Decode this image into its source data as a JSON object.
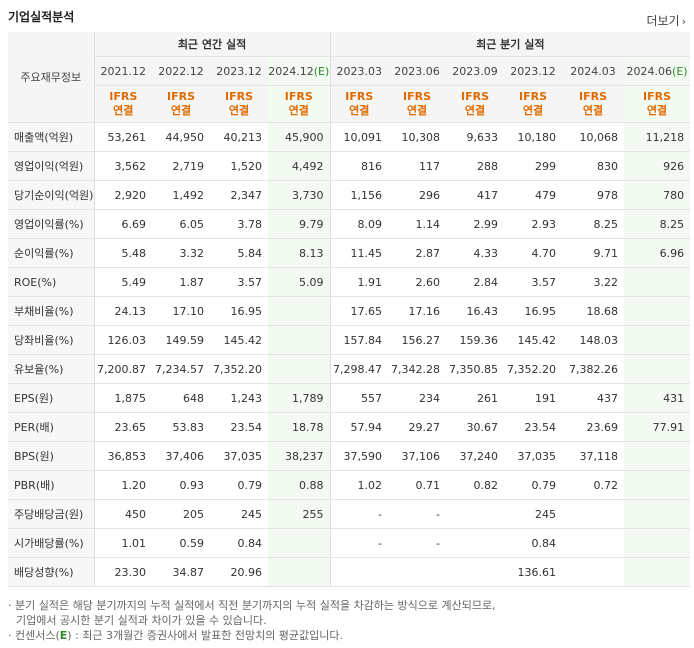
{
  "title": "기업실적분석",
  "more_label": "더보기",
  "header": {
    "label": "주요재무정보",
    "annual_group": "최근 연간 실적",
    "quarter_group": "최근 분기 실적",
    "periods": [
      "2021.12",
      "2022.12",
      "2023.12",
      "2024.12",
      "2023.03",
      "2023.06",
      "2023.09",
      "2023.12",
      "2024.03",
      "2024.06"
    ],
    "estimate_suffix": "(E)",
    "ifrs_top": "IFRS",
    "ifrs_bottom": "연결"
  },
  "rows": [
    {
      "label": "매출액(억원)",
      "values": [
        "53,261",
        "44,950",
        "40,213",
        "45,900",
        "10,091",
        "10,308",
        "9,633",
        "10,180",
        "10,068",
        "11,218"
      ]
    },
    {
      "label": "영업이익(억원)",
      "values": [
        "3,562",
        "2,719",
        "1,520",
        "4,492",
        "816",
        "117",
        "288",
        "299",
        "830",
        "926"
      ]
    },
    {
      "label": "당기순이익(억원)",
      "values": [
        "2,920",
        "1,492",
        "2,347",
        "3,730",
        "1,156",
        "296",
        "417",
        "479",
        "978",
        "780"
      ]
    },
    {
      "label": "영업이익률(%)",
      "values": [
        "6.69",
        "6.05",
        "3.78",
        "9.79",
        "8.09",
        "1.14",
        "2.99",
        "2.93",
        "8.25",
        "8.25"
      ]
    },
    {
      "label": "순이익률(%)",
      "values": [
        "5.48",
        "3.32",
        "5.84",
        "8.13",
        "11.45",
        "2.87",
        "4.33",
        "4.70",
        "9.71",
        "6.96"
      ]
    },
    {
      "label": "ROE(%)",
      "values": [
        "5.49",
        "1.87",
        "3.57",
        "5.09",
        "1.91",
        "2.60",
        "2.84",
        "3.57",
        "3.22",
        ""
      ]
    },
    {
      "label": "부채비율(%)",
      "values": [
        "24.13",
        "17.10",
        "16.95",
        "",
        "17.65",
        "17.16",
        "16.43",
        "16.95",
        "18.68",
        ""
      ]
    },
    {
      "label": "당좌비율(%)",
      "values": [
        "126.03",
        "149.59",
        "145.42",
        "",
        "157.84",
        "156.27",
        "159.36",
        "145.42",
        "148.03",
        ""
      ]
    },
    {
      "label": "유보율(%)",
      "values": [
        "7,200.87",
        "7,234.57",
        "7,352.20",
        "",
        "7,298.47",
        "7,342.28",
        "7,350.85",
        "7,352.20",
        "7,382.26",
        ""
      ]
    },
    {
      "label": "EPS(원)",
      "values": [
        "1,875",
        "648",
        "1,243",
        "1,789",
        "557",
        "234",
        "261",
        "191",
        "437",
        "431"
      ]
    },
    {
      "label": "PER(배)",
      "values": [
        "23.65",
        "53.83",
        "23.54",
        "18.78",
        "57.94",
        "29.27",
        "30.67",
        "23.54",
        "23.69",
        "77.91"
      ]
    },
    {
      "label": "BPS(원)",
      "values": [
        "36,853",
        "37,406",
        "37,035",
        "38,237",
        "37,590",
        "37,106",
        "37,240",
        "37,035",
        "37,118",
        ""
      ]
    },
    {
      "label": "PBR(배)",
      "values": [
        "1.20",
        "0.93",
        "0.79",
        "0.88",
        "1.02",
        "0.71",
        "0.82",
        "0.79",
        "0.72",
        ""
      ]
    },
    {
      "label": "주당배당금(원)",
      "values": [
        "450",
        "205",
        "245",
        "255",
        "-",
        "-",
        "",
        "245",
        "",
        ""
      ]
    },
    {
      "label": "시가배당률(%)",
      "values": [
        "1.01",
        "0.59",
        "0.84",
        "",
        "-",
        "-",
        "",
        "0.84",
        "",
        ""
      ]
    },
    {
      "label": "배당성향(%)",
      "values": [
        "23.30",
        "34.87",
        "20.96",
        "",
        "",
        "",
        "",
        "136.61",
        "",
        ""
      ]
    }
  ],
  "footnotes": {
    "line1": "분기 실적은 해당 분기까지의 누적 실적에서 직전 분기까지의 누적 실적을 차감하는 방식으로 계산되므로,",
    "line2": "기업에서 공시한 분기 실적과 차이가 있을 수 있습니다.",
    "line3_prefix": "컨센서스(",
    "line3_e": "E",
    "line3_suffix": ") : 최근 3개월간 증권사에서 발표한 전망치의 평균값입니다."
  }
}
